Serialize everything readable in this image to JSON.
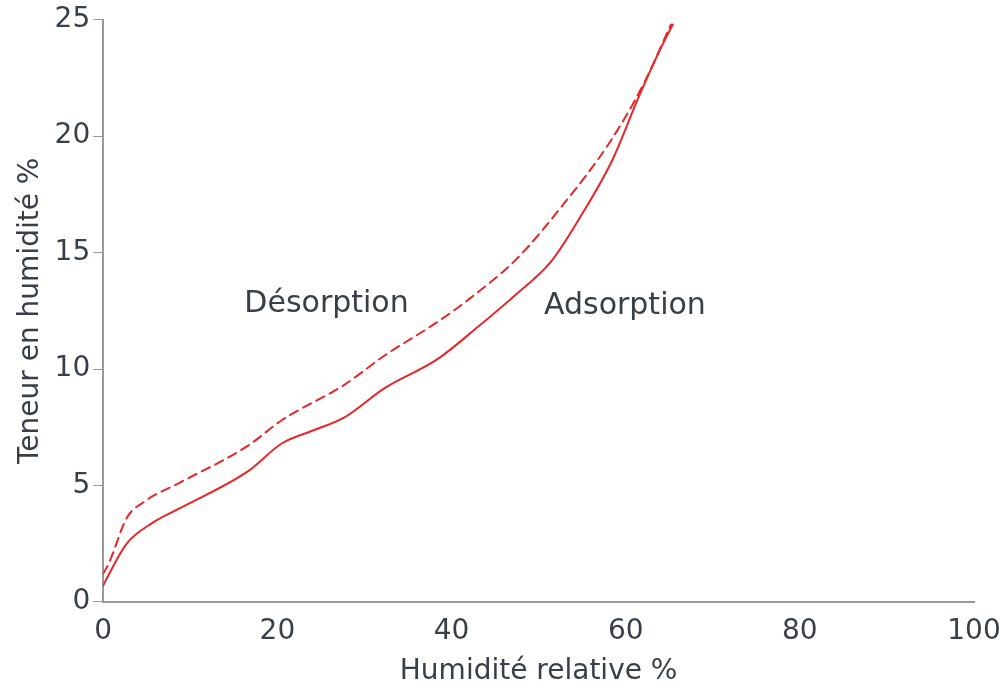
{
  "chart_data": {
    "type": "line",
    "xlabel": "Humidité relative %",
    "ylabel": "Teneur en humidité %",
    "xlim": [
      0,
      100
    ],
    "xticks": [
      0,
      20,
      40,
      60,
      80,
      100
    ],
    "ylim": [
      0,
      25
    ],
    "yticks": [
      0,
      5,
      10,
      15,
      20,
      25
    ],
    "grid": false,
    "legend": false,
    "marker": "none",
    "series": [
      {
        "name": "Adsorption",
        "color": "#e8262a",
        "line_style": "solid",
        "x": [
          0,
          0.4,
          2.7,
          5.7,
          8.7,
          16.6,
          20.5,
          24.4,
          27.6,
          32.4,
          38.3,
          43,
          47.4,
          51.4,
          54.9,
          58.5,
          61.4,
          63.8,
          65.4
        ],
        "values": [
          0.7,
          1.0,
          2.5,
          3.4,
          4.0,
          5.6,
          6.8,
          7.4,
          7.9,
          9.2,
          10.4,
          11.8,
          13.2,
          14.6,
          16.6,
          19,
          21.6,
          23.6,
          24.8
        ]
      },
      {
        "name": "Désorption",
        "color": "#e8262a",
        "line_style": "dashed",
        "x": [
          0,
          0.7,
          2.7,
          4.7,
          8.7,
          16.6,
          20.5,
          27.6,
          32.4,
          38.3,
          42,
          47.4,
          52.9,
          58.1,
          62,
          65.2
        ],
        "values": [
          1.2,
          1.7,
          3.6,
          4.3,
          5.1,
          6.7,
          7.8,
          9.3,
          10.6,
          12.0,
          13.0,
          14.7,
          17.1,
          19.7,
          22.2,
          24.8
        ]
      }
    ]
  }
}
